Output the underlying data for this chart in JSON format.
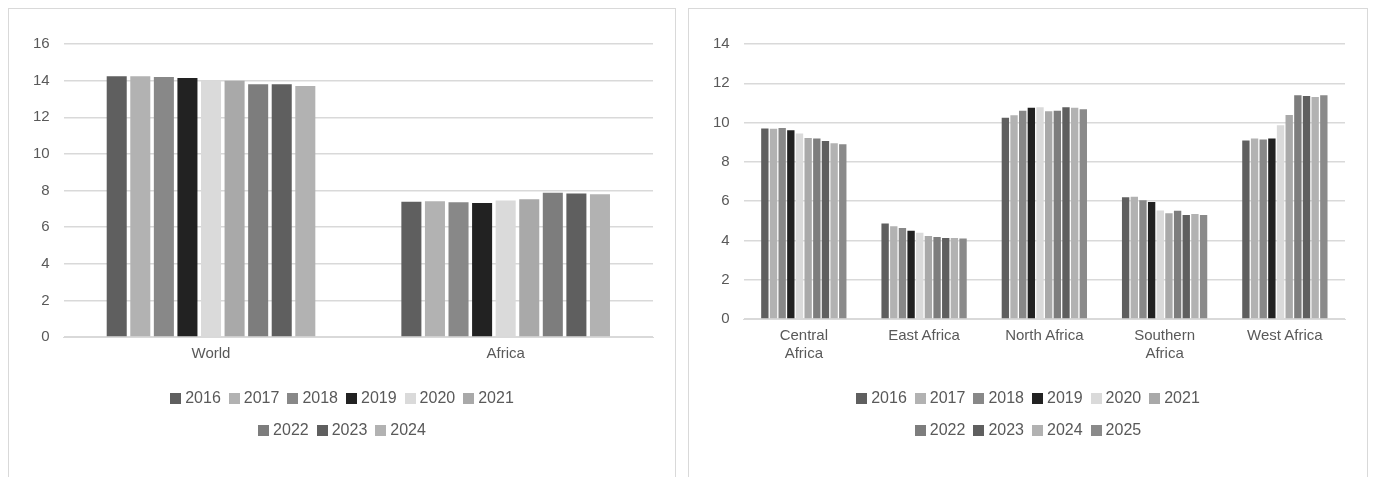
{
  "chart_data": [
    {
      "type": "bar",
      "categories": [
        "World",
        "Africa"
      ],
      "series": [
        {
          "name": "2016",
          "color": "#5f5f5f",
          "values": [
            14.24,
            7.39
          ]
        },
        {
          "name": "2017",
          "color": "#b2b2b2",
          "values": [
            14.24,
            7.41
          ]
        },
        {
          "name": "2018",
          "color": "#888888",
          "values": [
            14.2,
            7.36
          ]
        },
        {
          "name": "2019",
          "color": "#222222",
          "values": [
            14.15,
            7.32
          ]
        },
        {
          "name": "2020",
          "color": "#dadada",
          "values": [
            14.0,
            7.45
          ]
        },
        {
          "name": "2021",
          "color": "#a9a9a9",
          "values": [
            14.0,
            7.52
          ]
        },
        {
          "name": "2022",
          "color": "#7d7d7d",
          "values": [
            13.8,
            7.88
          ]
        },
        {
          "name": "2023",
          "color": "#5f5f5f",
          "values": [
            13.8,
            7.84
          ]
        },
        {
          "name": "2024",
          "color": "#b2b2b2",
          "values": [
            13.7,
            7.8
          ]
        }
      ],
      "ylim": [
        0,
        16
      ],
      "yticks": [
        0,
        2,
        4,
        6,
        8,
        10,
        12,
        14,
        16
      ],
      "grid": "y",
      "legend": "bottom"
    },
    {
      "type": "bar",
      "categories": [
        "Central Africa",
        "East Africa",
        "North Africa",
        "Southern Africa",
        "West Africa"
      ],
      "series": [
        {
          "name": "2016",
          "color": "#5f5f5f",
          "values": [
            9.7,
            4.86,
            10.25,
            6.2,
            9.09
          ]
        },
        {
          "name": "2017",
          "color": "#b2b2b2",
          "values": [
            9.68,
            4.72,
            10.37,
            6.22,
            9.19
          ]
        },
        {
          "name": "2018",
          "color": "#888888",
          "values": [
            9.73,
            4.63,
            10.6,
            6.05,
            9.14
          ]
        },
        {
          "name": "2019",
          "color": "#222222",
          "values": [
            9.61,
            4.49,
            10.75,
            5.96,
            9.19
          ]
        },
        {
          "name": "2020",
          "color": "#dadada",
          "values": [
            9.45,
            4.39,
            10.78,
            5.53,
            9.87
          ]
        },
        {
          "name": "2021",
          "color": "#a9a9a9",
          "values": [
            9.21,
            4.22,
            10.58,
            5.38,
            10.39
          ]
        },
        {
          "name": "2022",
          "color": "#7d7d7d",
          "values": [
            9.19,
            4.18,
            10.6,
            5.51,
            11.39
          ]
        },
        {
          "name": "2023",
          "color": "#5f5f5f",
          "values": [
            9.06,
            4.13,
            10.78,
            5.29,
            11.35
          ]
        },
        {
          "name": "2024",
          "color": "#b2b2b2",
          "values": [
            8.95,
            4.13,
            10.75,
            5.34,
            11.3
          ]
        },
        {
          "name": "2025",
          "color": "#8a8a8a",
          "values": [
            8.9,
            4.1,
            10.68,
            5.29,
            11.39
          ]
        }
      ],
      "ylim": [
        0,
        14
      ],
      "yticks": [
        0,
        2,
        4,
        6,
        8,
        10,
        12,
        14
      ],
      "grid": "y",
      "legend": "bottom"
    }
  ]
}
